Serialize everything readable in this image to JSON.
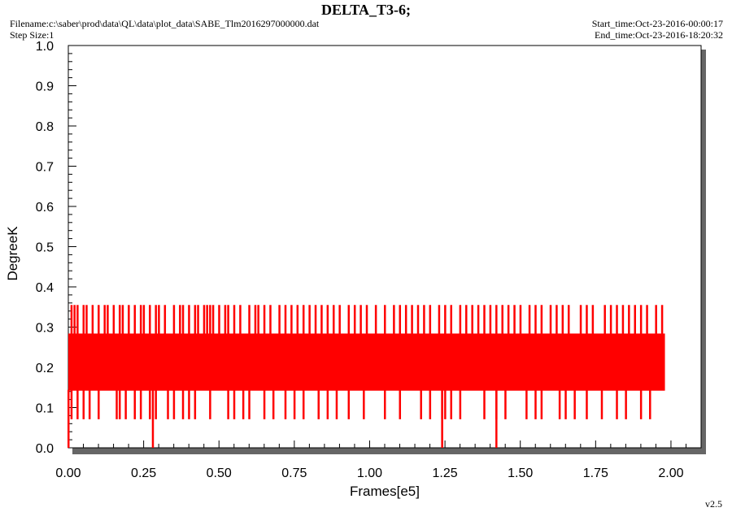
{
  "header": {
    "title": "DELTA_T3-6;",
    "filename": "Filename:c:\\saber\\prod\\data\\QL\\data\\plot_data\\SABE_Tlm2016297000000.dat",
    "step_size": "Step Size:1",
    "start_time": "Start_time:Oct-23-2016-00:00:17",
    "end_time": "End_time:Oct-23-2016-18:20:32"
  },
  "footer": {
    "version": "v2.5"
  },
  "chart_data": {
    "type": "line",
    "title": "DELTA_T3-6;",
    "xlabel": "Frames[e5]",
    "ylabel": "DegreeK",
    "xlim": [
      0.0,
      2.1
    ],
    "ylim": [
      0.0,
      1.0
    ],
    "x_ticks": [
      "0.00",
      "0.25",
      "0.50",
      "0.75",
      "1.00",
      "1.25",
      "1.50",
      "1.75",
      "2.00"
    ],
    "y_ticks": [
      "0.0",
      "0.1",
      "0.2",
      "0.3",
      "0.4",
      "0.5",
      "0.6",
      "0.7",
      "0.8",
      "0.9",
      "1.0"
    ],
    "grid": false,
    "series": [
      {
        "color": "#ff0000",
        "x_range": [
          0.0,
          1.98
        ],
        "band_values": [
          0.142,
          0.284
        ],
        "spike_values": [
          0.355,
          0.071,
          0.0
        ],
        "spikes_high_x": [
          0.01,
          0.02,
          0.03,
          0.05,
          0.06,
          0.08,
          0.1,
          0.12,
          0.13,
          0.15,
          0.17,
          0.18,
          0.2,
          0.22,
          0.24,
          0.25,
          0.27,
          0.29,
          0.3,
          0.32,
          0.35,
          0.37,
          0.38,
          0.4,
          0.42,
          0.43,
          0.45,
          0.46,
          0.47,
          0.48,
          0.5,
          0.52,
          0.53,
          0.55,
          0.57,
          0.6,
          0.62,
          0.63,
          0.65,
          0.67,
          0.7,
          0.72,
          0.74,
          0.76,
          0.78,
          0.8,
          0.82,
          0.84,
          0.86,
          0.88,
          0.9,
          0.93,
          0.95,
          0.97,
          0.99,
          1.02,
          1.05,
          1.08,
          1.1,
          1.12,
          1.14,
          1.16,
          1.18,
          1.2,
          1.23,
          1.25,
          1.27,
          1.3,
          1.32,
          1.34,
          1.36,
          1.38,
          1.4,
          1.42,
          1.44,
          1.46,
          1.48,
          1.5,
          1.53,
          1.55,
          1.57,
          1.6,
          1.62,
          1.64,
          1.66,
          1.7,
          1.72,
          1.74,
          1.78,
          1.8,
          1.82,
          1.84,
          1.86,
          1.88,
          1.9,
          1.92,
          1.95,
          1.97
        ],
        "spikes_low_x": [
          0.01,
          0.03,
          0.05,
          0.07,
          0.1,
          0.16,
          0.17,
          0.19,
          0.22,
          0.24,
          0.27,
          0.29,
          0.33,
          0.35,
          0.38,
          0.4,
          0.42,
          0.47,
          0.53,
          0.55,
          0.58,
          0.6,
          0.65,
          0.68,
          0.72,
          0.75,
          0.78,
          0.83,
          0.86,
          0.89,
          0.93,
          0.98,
          1.05,
          1.1,
          1.17,
          1.2,
          1.24,
          1.25,
          1.27,
          1.3,
          1.38,
          1.42,
          1.45,
          1.52,
          1.55,
          1.57,
          1.63,
          1.65,
          1.68,
          1.72,
          1.77,
          1.82,
          1.85,
          1.9,
          1.93
        ],
        "spikes_zero_x": [
          0.0,
          0.28,
          1.24,
          1.42
        ]
      }
    ]
  }
}
